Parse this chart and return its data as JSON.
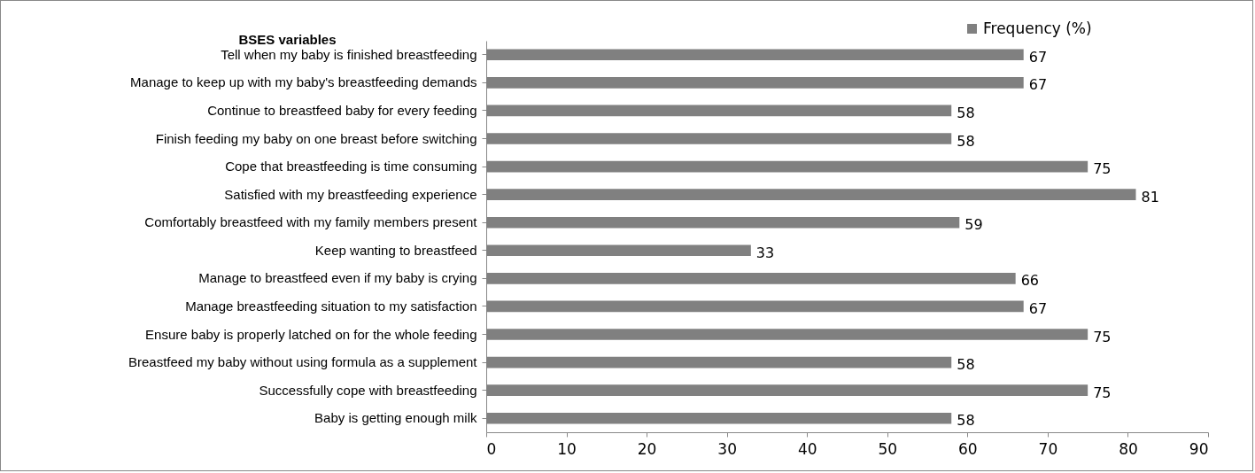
{
  "chart_data": {
    "type": "bar",
    "orientation": "horizontal",
    "ylabel": "BSES variables",
    "categories": [
      "Tell when my baby is finished breastfeeding",
      "Manage to keep up with my baby's breastfeeding demands",
      "Continue to breastfeed baby for every feeding",
      "Finish feeding my baby on one breast before switching",
      "Cope that breastfeeding is time consuming",
      "Satisfied with my breastfeeding experience",
      "Comfortably breastfeed with my family members present",
      "Keep wanting to breastfeed",
      "Manage to breastfeed even if my baby is crying",
      "Manage breastfeeding situation to my satisfaction",
      "Ensure baby is properly latched on for the whole feeding",
      "Breastfeed my baby without using formula as a supplement",
      "Successfully cope with breastfeeding",
      "Baby is getting enough milk"
    ],
    "series": [
      {
        "name": "Frequency (%)",
        "color": "#808080",
        "values": [
          67,
          67,
          58,
          58,
          75,
          81,
          59,
          33,
          66,
          67,
          75,
          58,
          75,
          58
        ]
      }
    ],
    "xlim": [
      0,
      90
    ],
    "xticks": [
      0,
      10,
      20,
      30,
      40,
      50,
      60,
      70,
      80,
      90
    ],
    "data_labels": true,
    "legend": "top right",
    "grid": false
  }
}
